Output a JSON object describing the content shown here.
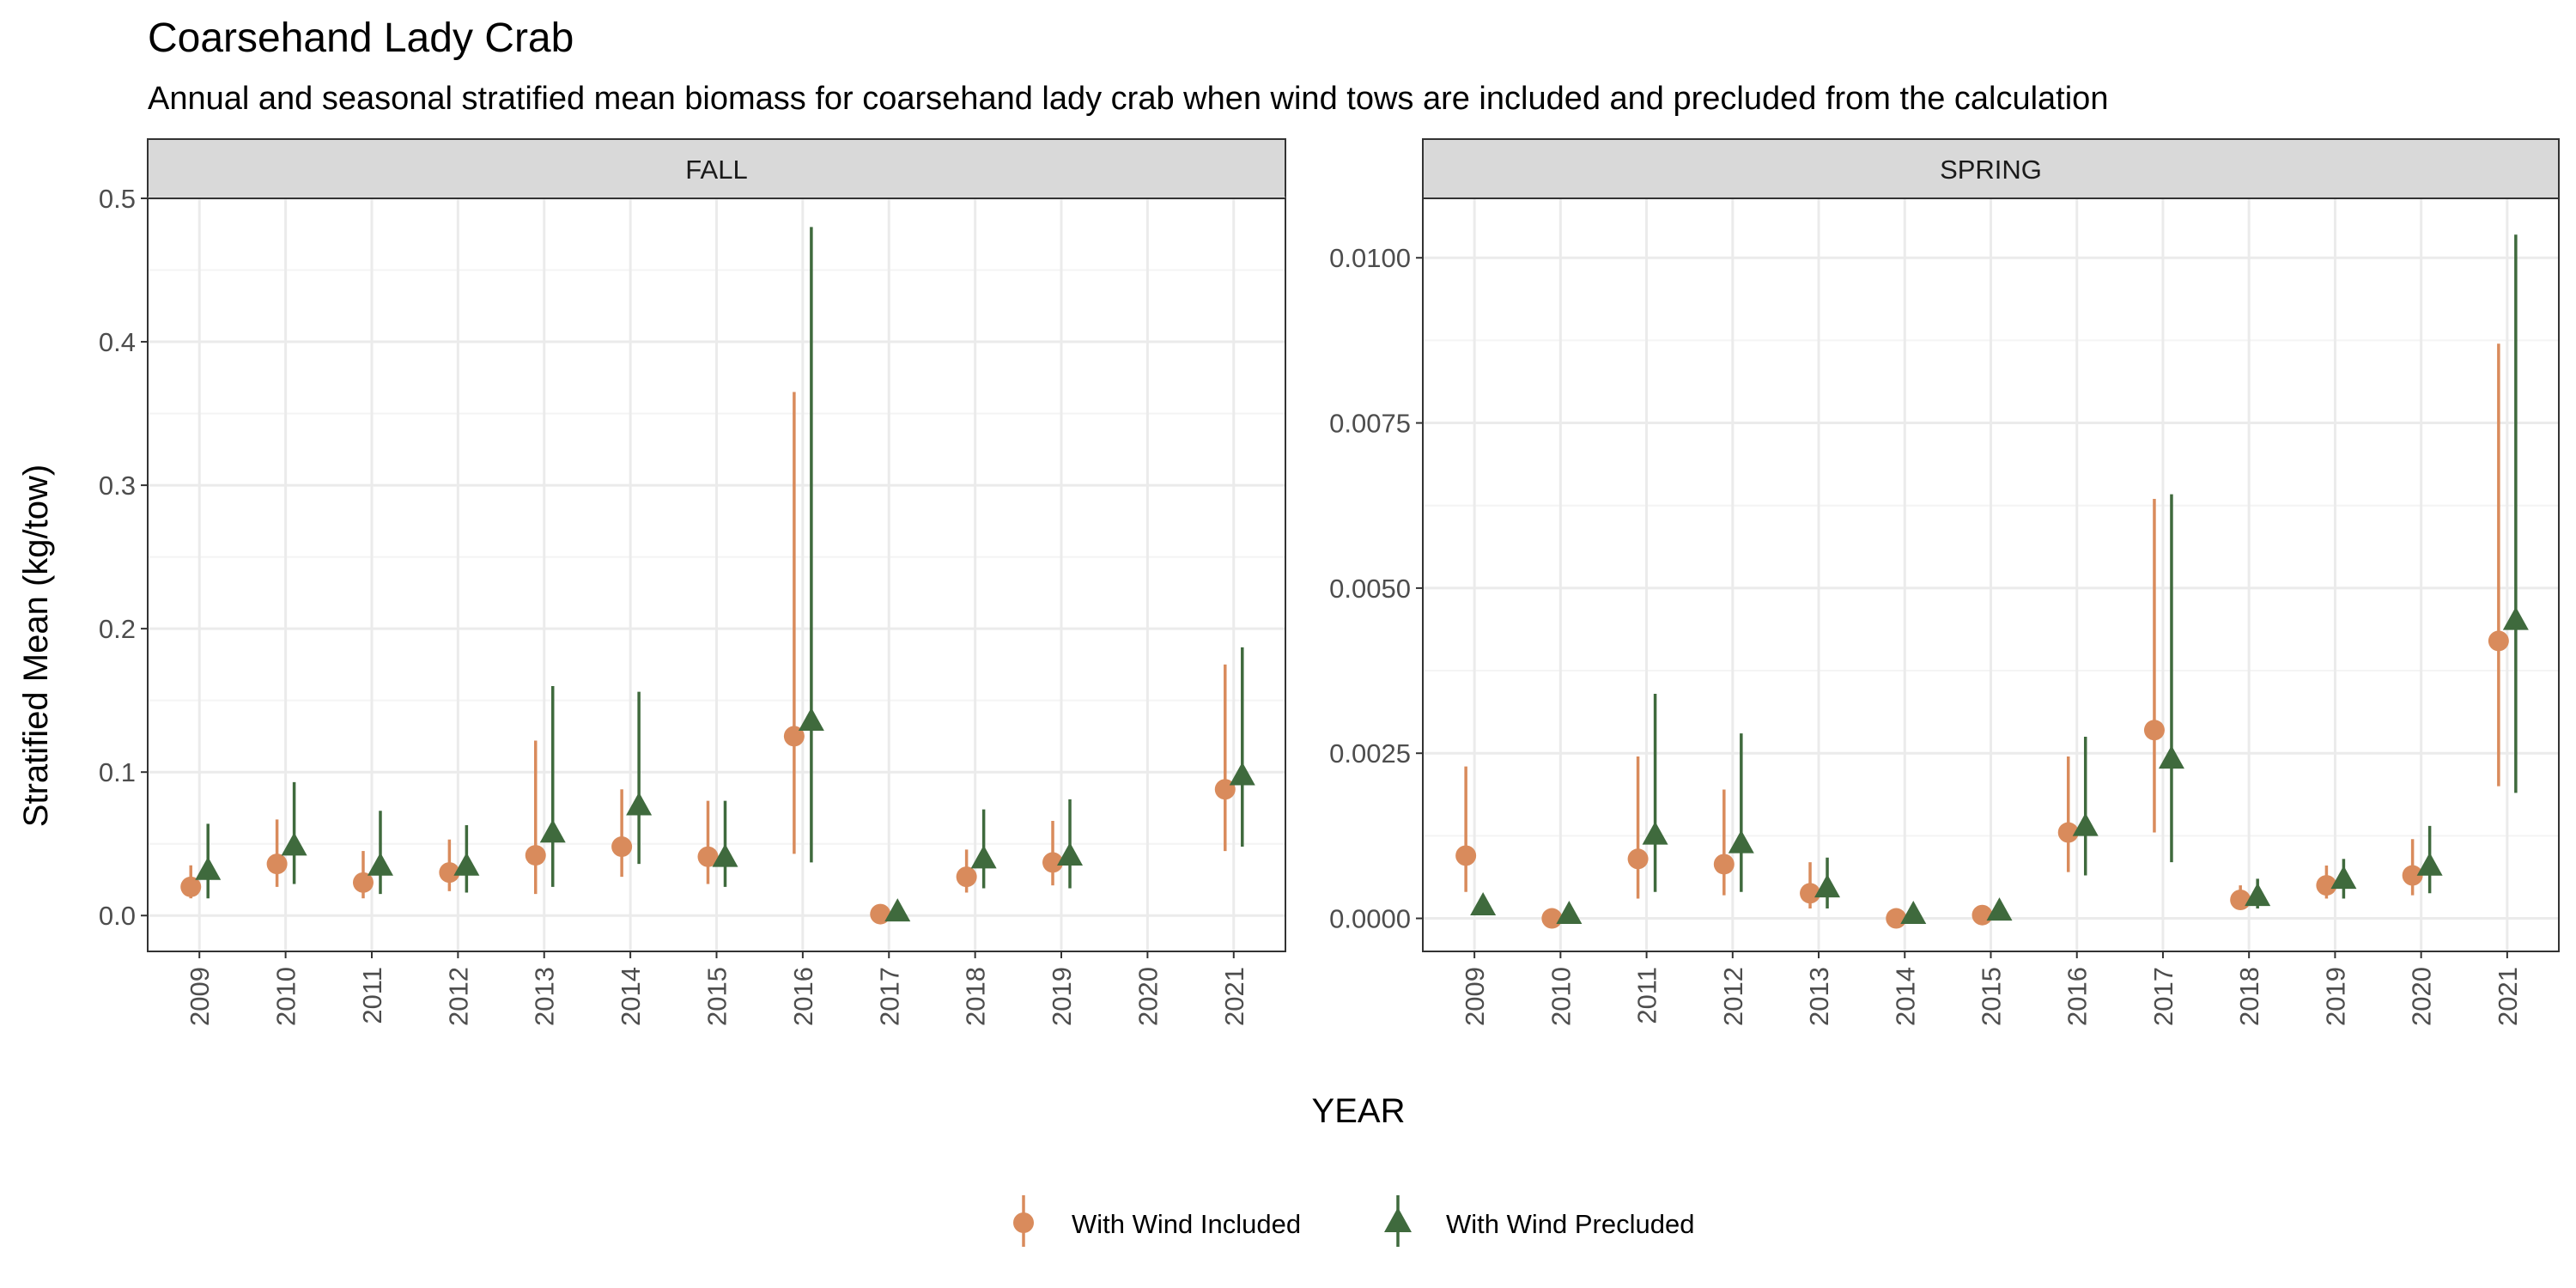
{
  "title": "Coarsehand Lady Crab",
  "subtitle": "Annual and seasonal stratified mean biomass for coarsehand lady crab when wind tows are included and precluded from the calculation",
  "colors": {
    "included": "#d98b5c",
    "precluded": "#3f6a3d",
    "strip_bg": "#d9d9d9",
    "grid_major": "#ebebeb",
    "grid_minor": "#f4f4f4",
    "panel_border": "#333333"
  },
  "legend": {
    "included_label": "With Wind Included",
    "precluded_label": "With Wind Precluded",
    "placement": "bottom"
  },
  "chart_data": {
    "type": "scatter",
    "xlabel": "YEAR",
    "ylabel": "Stratified Mean (kg/tow)",
    "categories": [
      "2009",
      "2010",
      "2011",
      "2012",
      "2013",
      "2014",
      "2015",
      "2016",
      "2017",
      "2018",
      "2019",
      "2020",
      "2021"
    ],
    "grid": true,
    "panels": [
      {
        "strip": "FALL",
        "ylim": [
          -0.025,
          0.5
        ],
        "yticks": [
          0.0,
          0.1,
          0.2,
          0.3,
          0.4,
          0.5
        ],
        "ytick_labels": [
          "0.0",
          "0.1",
          "0.2",
          "0.3",
          "0.4",
          "0.5"
        ],
        "series": [
          {
            "name": "With Wind Included",
            "marker": "circle",
            "points": [
              {
                "x": "2009",
                "y": 0.02,
                "lo": 0.012,
                "hi": 0.035
              },
              {
                "x": "2010",
                "y": 0.036,
                "lo": 0.02,
                "hi": 0.067
              },
              {
                "x": "2011",
                "y": 0.023,
                "lo": 0.012,
                "hi": 0.045
              },
              {
                "x": "2012",
                "y": 0.03,
                "lo": 0.017,
                "hi": 0.053
              },
              {
                "x": "2013",
                "y": 0.042,
                "lo": 0.015,
                "hi": 0.122
              },
              {
                "x": "2014",
                "y": 0.048,
                "lo": 0.027,
                "hi": 0.088
              },
              {
                "x": "2015",
                "y": 0.041,
                "lo": 0.022,
                "hi": 0.08
              },
              {
                "x": "2016",
                "y": 0.125,
                "lo": 0.043,
                "hi": 0.365
              },
              {
                "x": "2017",
                "y": 0.001,
                "lo": 0.0,
                "hi": 0.002
              },
              {
                "x": "2018",
                "y": 0.027,
                "lo": 0.016,
                "hi": 0.046
              },
              {
                "x": "2019",
                "y": 0.037,
                "lo": 0.021,
                "hi": 0.066
              },
              {
                "x": "2021",
                "y": 0.088,
                "lo": 0.045,
                "hi": 0.175
              }
            ]
          },
          {
            "name": "With Wind Precluded",
            "marker": "triangle",
            "points": [
              {
                "x": "2009",
                "y": 0.031,
                "lo": 0.012,
                "hi": 0.064
              },
              {
                "x": "2010",
                "y": 0.048,
                "lo": 0.022,
                "hi": 0.093
              },
              {
                "x": "2011",
                "y": 0.034,
                "lo": 0.015,
                "hi": 0.073
              },
              {
                "x": "2012",
                "y": 0.034,
                "lo": 0.016,
                "hi": 0.063
              },
              {
                "x": "2013",
                "y": 0.057,
                "lo": 0.02,
                "hi": 0.16
              },
              {
                "x": "2014",
                "y": 0.076,
                "lo": 0.036,
                "hi": 0.156
              },
              {
                "x": "2015",
                "y": 0.04,
                "lo": 0.02,
                "hi": 0.08
              },
              {
                "x": "2016",
                "y": 0.135,
                "lo": 0.037,
                "hi": 0.48
              },
              {
                "x": "2017",
                "y": 0.002,
                "lo": 0.0,
                "hi": 0.004
              },
              {
                "x": "2018",
                "y": 0.039,
                "lo": 0.019,
                "hi": 0.074
              },
              {
                "x": "2019",
                "y": 0.041,
                "lo": 0.019,
                "hi": 0.081
              },
              {
                "x": "2021",
                "y": 0.097,
                "lo": 0.048,
                "hi": 0.187
              }
            ]
          }
        ]
      },
      {
        "strip": "SPRING",
        "ylim": [
          -0.0005,
          0.0109
        ],
        "yticks": [
          0.0,
          0.0025,
          0.005,
          0.0075,
          0.01
        ],
        "ytick_labels": [
          "0.0000",
          "0.0025",
          "0.0050",
          "0.0075",
          "0.0100"
        ],
        "series": [
          {
            "name": "With Wind Included",
            "marker": "circle",
            "points": [
              {
                "x": "2009",
                "y": 0.00095,
                "lo": 0.0004,
                "hi": 0.0023
              },
              {
                "x": "2010",
                "y": 0.0,
                "lo": 0.0,
                "hi": 5e-05
              },
              {
                "x": "2011",
                "y": 0.0009,
                "lo": 0.0003,
                "hi": 0.00245
              },
              {
                "x": "2012",
                "y": 0.00082,
                "lo": 0.00035,
                "hi": 0.00195
              },
              {
                "x": "2013",
                "y": 0.00038,
                "lo": 0.00015,
                "hi": 0.00085
              },
              {
                "x": "2014",
                "y": 0.0,
                "lo": 0.0,
                "hi": 5e-05
              },
              {
                "x": "2015",
                "y": 5e-05,
                "lo": 0.0,
                "hi": 0.0001
              },
              {
                "x": "2016",
                "y": 0.0013,
                "lo": 0.0007,
                "hi": 0.00245
              },
              {
                "x": "2017",
                "y": 0.00285,
                "lo": 0.0013,
                "hi": 0.00635
              },
              {
                "x": "2018",
                "y": 0.00028,
                "lo": 0.00015,
                "hi": 0.0005
              },
              {
                "x": "2019",
                "y": 0.0005,
                "lo": 0.0003,
                "hi": 0.0008
              },
              {
                "x": "2020",
                "y": 0.00065,
                "lo": 0.00035,
                "hi": 0.0012
              },
              {
                "x": "2021",
                "y": 0.0042,
                "lo": 0.002,
                "hi": 0.0087
              }
            ]
          },
          {
            "name": "With Wind Precluded",
            "marker": "triangle",
            "points": [
              {
                "x": "2009",
                "y": 0.00018,
                "lo": 0.0001,
                "hi": 0.0003
              },
              {
                "x": "2010",
                "y": 5e-05,
                "lo": 0.0,
                "hi": 0.0001
              },
              {
                "x": "2011",
                "y": 0.00125,
                "lo": 0.0004,
                "hi": 0.0034
              },
              {
                "x": "2012",
                "y": 0.00112,
                "lo": 0.0004,
                "hi": 0.0028
              },
              {
                "x": "2013",
                "y": 0.00045,
                "lo": 0.00015,
                "hi": 0.00092
              },
              {
                "x": "2014",
                "y": 5e-05,
                "lo": 0.0,
                "hi": 0.0001
              },
              {
                "x": "2015",
                "y": 0.0001,
                "lo": 0.0,
                "hi": 0.0002
              },
              {
                "x": "2016",
                "y": 0.00138,
                "lo": 0.00065,
                "hi": 0.00275
              },
              {
                "x": "2017",
                "y": 0.0024,
                "lo": 0.00085,
                "hi": 0.00642
              },
              {
                "x": "2018",
                "y": 0.00032,
                "lo": 0.00015,
                "hi": 0.0006
              },
              {
                "x": "2019",
                "y": 0.00058,
                "lo": 0.0003,
                "hi": 0.0009
              },
              {
                "x": "2020",
                "y": 0.00078,
                "lo": 0.00038,
                "hi": 0.0014
              },
              {
                "x": "2021",
                "y": 0.0045,
                "lo": 0.0019,
                "hi": 0.01035
              }
            ]
          }
        ]
      }
    ]
  }
}
